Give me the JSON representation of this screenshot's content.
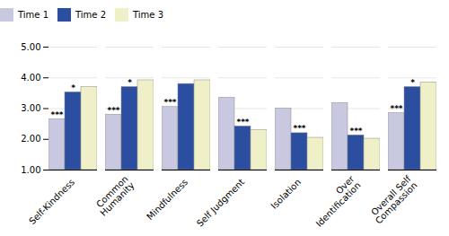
{
  "chart_data": {
    "type": "bar",
    "categories": [
      "Self-Kindness",
      "Common\nHumanity",
      "Mindfulness",
      "Self Judgment",
      "Isolation",
      "Over\nIdentification",
      "Overall Self\nCompassion"
    ],
    "series": [
      {
        "name": "Time 1",
        "color": "#c8c8e0",
        "values": [
          2.65,
          2.8,
          3.05,
          3.35,
          3.0,
          3.18,
          2.85
        ]
      },
      {
        "name": "Time 2",
        "color": "#2b4ea0",
        "values": [
          3.53,
          3.7,
          3.8,
          2.42,
          2.2,
          2.13,
          3.7
        ]
      },
      {
        "name": "Time 3",
        "color": "#efefc8",
        "values": [
          3.7,
          3.92,
          3.92,
          2.3,
          2.05,
          2.02,
          3.85
        ]
      }
    ],
    "ylim": [
      1.0,
      5.0
    ],
    "yticks": [
      {
        "value": 1,
        "label": "1.00"
      },
      {
        "value": 2,
        "label": "2.00"
      },
      {
        "value": 3,
        "label": "3.00"
      },
      {
        "value": 4,
        "label": "4.00"
      },
      {
        "value": 5,
        "label": "5.00"
      }
    ],
    "grid": true,
    "legend": "top",
    "annotations": [
      {
        "category": "Self-Kindness",
        "series": "Time 1",
        "text": "***"
      },
      {
        "category": "Self-Kindness",
        "series": "Time 2",
        "text": "*"
      },
      {
        "category": "Common\nHumanity",
        "series": "Time 1",
        "text": "***"
      },
      {
        "category": "Common\nHumanity",
        "series": "Time 2",
        "text": "*"
      },
      {
        "category": "Mindfulness",
        "series": "Time 1",
        "text": "***"
      },
      {
        "category": "Self Judgment",
        "series": "Time 2",
        "text": "***"
      },
      {
        "category": "Isolation",
        "series": "Time 2",
        "text": "***"
      },
      {
        "category": "Over\nIdentification",
        "series": "Time 2",
        "text": "***"
      },
      {
        "category": "Overall Self\nCompassion",
        "series": "Time 1",
        "text": "***"
      },
      {
        "category": "Overall Self\nCompassion",
        "series": "Time 2",
        "text": "*"
      }
    ]
  }
}
